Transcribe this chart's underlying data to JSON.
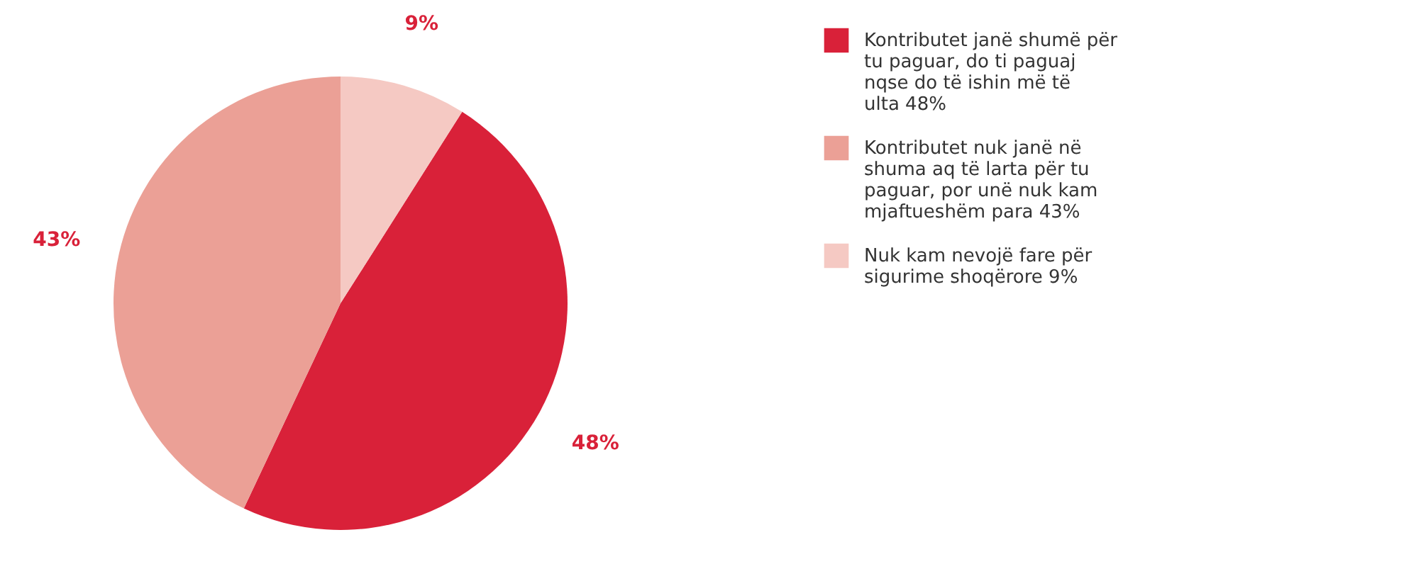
{
  "chart_data": {
    "type": "pie",
    "categories": [
      "Kontributet janë shumë për tu paguar, do ti paguaj nqse do të ishin më të ulta 48%",
      "Kontributet nuk janë në shuma aq të larta për tu paguar, por unë nuk kam mjaftueshëm para 43%",
      "Nuk kam nevojë fare për sigurime shoqërore 9%"
    ],
    "values": [
      48,
      43,
      9
    ],
    "colors": [
      "#d92139",
      "#eba096",
      "#f5c9c3"
    ],
    "value_labels": [
      "48%",
      "43%",
      "9%"
    ],
    "legend": "right"
  }
}
